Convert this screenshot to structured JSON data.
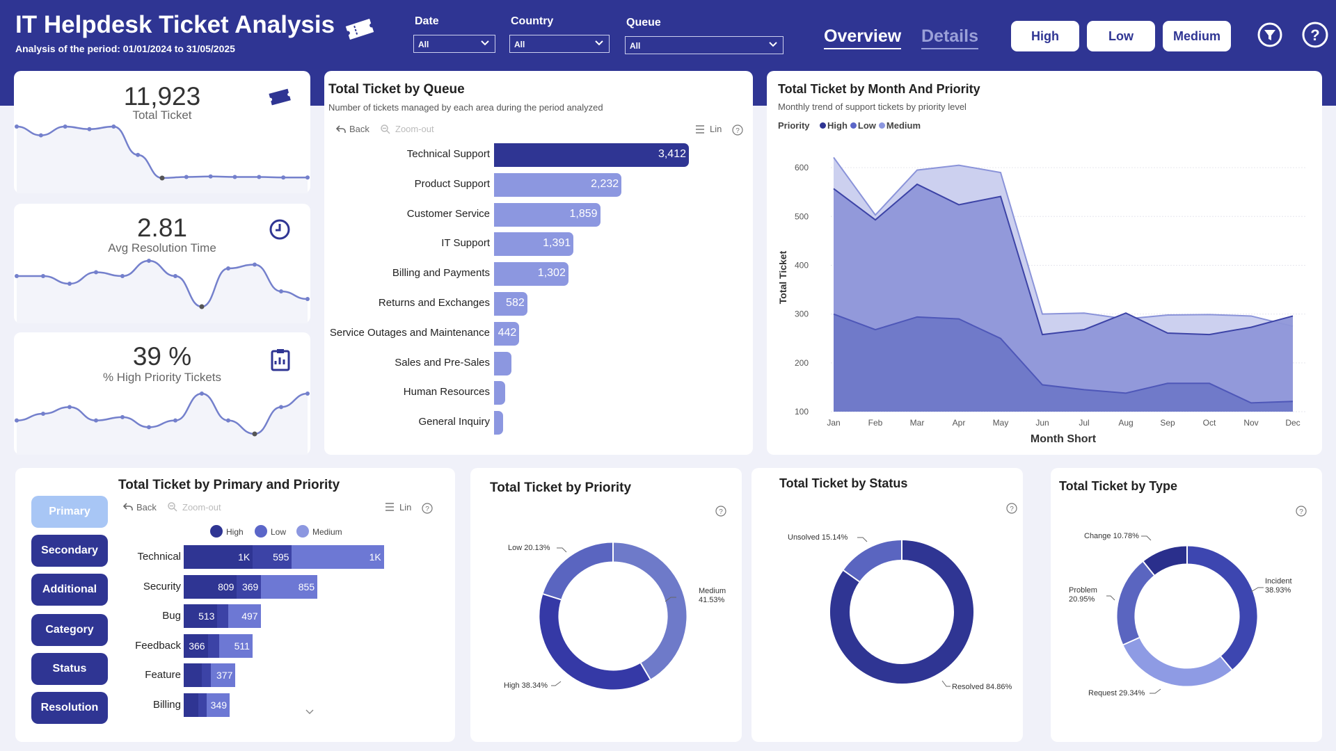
{
  "header": {
    "title": "IT Helpdesk Ticket Analysis",
    "subtitle": "Analysis of the period: 01/01/2024 to 31/05/2025",
    "filters": [
      {
        "label": "Date",
        "value": "All"
      },
      {
        "label": "Country",
        "value": "All"
      },
      {
        "label": "Queue",
        "value": "All"
      }
    ],
    "tabs": [
      {
        "label": "Overview",
        "active": true
      },
      {
        "label": "Details",
        "active": false
      }
    ],
    "priority_buttons": [
      "High",
      "Low",
      "Medium"
    ]
  },
  "kpis": [
    {
      "value": "11,923",
      "label": "Total Ticket",
      "icon": "ticket-icon",
      "trend": [
        305,
        288,
        305,
        300,
        305,
        250,
        205,
        207,
        208,
        207,
        207,
        206,
        206
      ]
    },
    {
      "value": "2.81",
      "label": "Avg Resolution Time",
      "icon": "clock-icon",
      "trend": [
        2.9,
        2.9,
        2.8,
        2.95,
        2.9,
        3.1,
        2.9,
        2.5,
        3.0,
        3.05,
        2.7,
        2.6
      ]
    },
    {
      "value": "39 %",
      "label": "% High Priority Tickets",
      "icon": "clipboard-chart-icon",
      "trend": [
        37,
        38,
        39,
        37,
        37.5,
        36,
        37,
        41,
        37,
        35,
        39,
        41
      ]
    }
  ],
  "queue_chart": {
    "title": "Total Ticket by Queue",
    "subtitle": "Number of tickets managed by each area during the period analyzed",
    "back_label": "Back",
    "zoom_label": "Zoom-out",
    "lin_label": "Lin"
  },
  "month_chart": {
    "title": "Total Ticket by Month And Priority",
    "subtitle": "Monthly trend of support tickets by priority level",
    "legend_title": "Priority",
    "xlabel": "Month Short",
    "ylabel": "Total Ticket"
  },
  "primary_chart": {
    "title": "Total Ticket by Primary and Priority",
    "back_label": "Back",
    "zoom_label": "Zoom-out",
    "lin_label": "Lin",
    "legend": [
      "High",
      "Low",
      "Medium"
    ],
    "side_buttons": [
      "Primary",
      "Secondary",
      "Additional",
      "Category",
      "Status",
      "Resolution"
    ]
  },
  "colors": {
    "header": "#2f3593",
    "high": "#2f3593",
    "low": "#5b66c8",
    "medium": "#8c97e0"
  },
  "chart_data": [
    {
      "type": "bar",
      "title": "Total Ticket by Queue",
      "categories": [
        "Technical Support",
        "Product Support",
        "Customer Service",
        "IT Support",
        "Billing and Payments",
        "Returns and Exchanges",
        "Service Outages and Maintenance",
        "Sales and Pre-Sales",
        "Human Resources",
        "General Inquiry"
      ],
      "values": [
        3412,
        2232,
        1859,
        1391,
        1302,
        582,
        442,
        300,
        190,
        160
      ],
      "value_labels": [
        "3,412",
        "2,232",
        "1,859",
        "1,391",
        "1,302",
        "582",
        "442",
        "",
        "",
        ""
      ]
    },
    {
      "type": "area",
      "title": "Total Ticket by Month And Priority",
      "categories": [
        "Jan",
        "Feb",
        "Mar",
        "Apr",
        "May",
        "Jun",
        "Jul",
        "Aug",
        "Sep",
        "Oct",
        "Nov",
        "Dec"
      ],
      "series": [
        {
          "name": "High",
          "values": [
            300,
            268,
            294,
            290,
            250,
            155,
            145,
            138,
            158,
            158,
            118,
            121
          ]
        },
        {
          "name": "Low",
          "values": [
            557,
            493,
            566,
            524,
            541,
            258,
            268,
            302,
            261,
            258,
            273,
            296
          ]
        },
        {
          "name": "Medium",
          "values": [
            621,
            503,
            595,
            605,
            590,
            300,
            302,
            290,
            298,
            299,
            296,
            275
          ]
        }
      ],
      "ylim": [
        100,
        650
      ],
      "yticks": [
        100,
        200,
        300,
        400,
        500,
        600
      ],
      "xlabel": "Month Short",
      "ylabel": "Total Ticket",
      "grid": true,
      "legend": "top-left"
    },
    {
      "type": "bar",
      "title": "Total Ticket by Primary and Priority",
      "categories": [
        "Technical",
        "Security",
        "Bug",
        "Feedback",
        "Feature",
        "Billing"
      ],
      "series": [
        {
          "name": "High",
          "values": [
            1050,
            809,
            513,
            366,
            280,
            220
          ]
        },
        {
          "name": "Low",
          "values": [
            595,
            369,
            160,
            170,
            130,
            130
          ]
        },
        {
          "name": "Medium",
          "values": [
            1400,
            855,
            497,
            511,
            377,
            349
          ]
        }
      ],
      "value_labels": [
        [
          "1K",
          "595",
          "1K"
        ],
        [
          "809",
          "369",
          "855"
        ],
        [
          "513",
          "",
          "497"
        ],
        [
          "366",
          "",
          "511"
        ],
        [
          "",
          "",
          "377"
        ],
        [
          "",
          "",
          "349"
        ]
      ]
    },
    {
      "type": "pie",
      "title": "Total Ticket by Priority",
      "categories": [
        "Medium",
        "High",
        "Low"
      ],
      "values": [
        41.53,
        38.34,
        20.13
      ],
      "labels": [
        "Medium\n41.53%",
        "High 38.34%",
        "Low 20.13%"
      ]
    },
    {
      "type": "pie",
      "title": "Total Ticket by Status",
      "categories": [
        "Resolved",
        "Unsolved"
      ],
      "values": [
        84.86,
        15.14
      ],
      "labels": [
        "Resolved 84.86%",
        "Unsolved 15.14%"
      ]
    },
    {
      "type": "pie",
      "title": "Total Ticket by Type",
      "categories": [
        "Incident",
        "Request",
        "Problem",
        "Change"
      ],
      "values": [
        38.93,
        29.34,
        20.95,
        10.78
      ],
      "labels": [
        "Incident\n38.93%",
        "Request 29.34%",
        "Problem\n20.95%",
        "Change 10.78%"
      ]
    }
  ]
}
